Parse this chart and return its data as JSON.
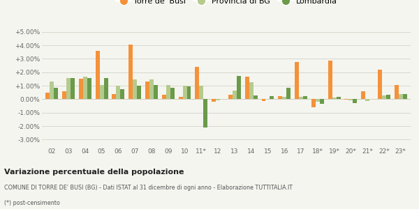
{
  "years": [
    "02",
    "03",
    "04",
    "05",
    "06",
    "07",
    "08",
    "09",
    "10",
    "11*",
    "12",
    "13",
    "14",
    "15",
    "16",
    "17",
    "18*",
    "19*",
    "20*",
    "21*",
    "22*",
    "23*"
  ],
  "torre": [
    0.5,
    0.6,
    1.5,
    3.6,
    0.4,
    4.05,
    1.3,
    0.35,
    0.15,
    2.4,
    -0.2,
    0.35,
    1.65,
    -0.15,
    0.2,
    2.75,
    -0.6,
    2.85,
    -0.05,
    0.6,
    2.2,
    1.05
  ],
  "provincia": [
    1.3,
    1.55,
    1.65,
    1.05,
    1.0,
    1.45,
    1.45,
    1.05,
    1.0,
    1.0,
    -0.1,
    0.65,
    1.25,
    0.0,
    0.15,
    0.15,
    -0.2,
    0.1,
    -0.1,
    -0.15,
    0.3,
    0.4
  ],
  "lombardia": [
    0.85,
    1.55,
    1.55,
    1.55,
    0.75,
    1.0,
    1.05,
    0.85,
    0.95,
    -2.1,
    0.0,
    1.75,
    0.3,
    0.25,
    0.85,
    0.2,
    -0.35,
    0.15,
    -0.3,
    0.0,
    0.35,
    0.4
  ],
  "torre_color": "#f4923a",
  "provincia_color": "#b5cb8e",
  "lombardia_color": "#6a9a4a",
  "bg_color": "#f5f5f0",
  "grid_color": "#d8d8cc",
  "ylim": [
    -3.5,
    5.5
  ],
  "yticks": [
    -3.0,
    -2.0,
    -1.0,
    0.0,
    1.0,
    2.0,
    3.0,
    4.0,
    5.0
  ],
  "ytick_labels": [
    "-3.00%",
    "-2.00%",
    "-1.00%",
    "0.00%",
    "+1.00%",
    "+2.00%",
    "+3.00%",
    "+4.00%",
    "+5.00%"
  ],
  "title_bold": "Variazione percentuale della popolazione",
  "subtitle": "COMUNE DI TORRE DE' BUSI (BG) - Dati ISTAT al 31 dicembre di ogni anno - Elaborazione TUTTITALIA.IT",
  "footnote": "(*) post-censimento",
  "legend_labels": [
    "Torre de' Busi",
    "Provincia di BG",
    "Lombardia"
  ]
}
